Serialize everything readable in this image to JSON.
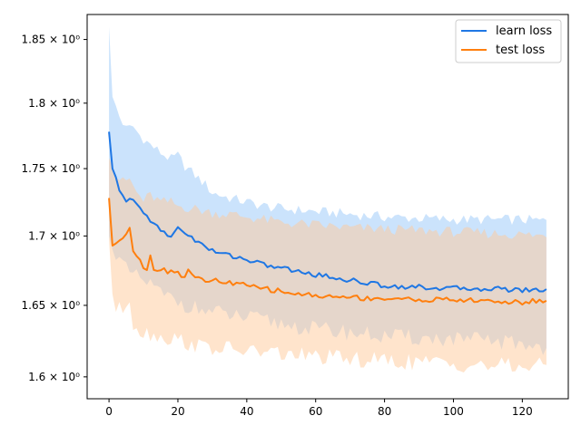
{
  "chart_data": {
    "type": "line",
    "title": "",
    "xlabel": "",
    "ylabel": "",
    "xlim": [
      -6.35,
      133.35
    ],
    "ylim": [
      1.585,
      1.87
    ],
    "yscale": "log",
    "grid": false,
    "legend_position": "top-right",
    "x_ticks": [
      0,
      20,
      40,
      60,
      80,
      100,
      120
    ],
    "x_tick_labels": [
      "0",
      "20",
      "40",
      "60",
      "80",
      "100",
      "120"
    ],
    "y_ticks": [
      1.6,
      1.65,
      1.7,
      1.75,
      1.8,
      1.85
    ],
    "y_tick_labels": [
      "1.6 × 10⁰",
      "1.65 × 10⁰",
      "1.7 × 10⁰",
      "1.75 × 10⁰",
      "1.8 × 10⁰",
      "1.85 × 10⁰"
    ],
    "x_start": 0,
    "x_end": 127,
    "series": [
      {
        "name": "learn loss",
        "color": "#1f77e4",
        "band_color": "#a8d0fa",
        "anchors": [
          [
            0,
            1.778
          ],
          [
            1,
            1.75
          ],
          [
            3,
            1.735
          ],
          [
            5,
            1.725
          ],
          [
            7,
            1.727
          ],
          [
            9,
            1.72
          ],
          [
            12,
            1.712
          ],
          [
            15,
            1.705
          ],
          [
            17,
            1.699
          ],
          [
            19,
            1.702
          ],
          [
            20,
            1.706
          ],
          [
            22,
            1.703
          ],
          [
            25,
            1.697
          ],
          [
            28,
            1.692
          ],
          [
            30,
            1.689
          ],
          [
            35,
            1.686
          ],
          [
            40,
            1.683
          ],
          [
            45,
            1.679
          ],
          [
            50,
            1.677
          ],
          [
            55,
            1.674
          ],
          [
            60,
            1.672
          ],
          [
            65,
            1.67
          ],
          [
            70,
            1.668
          ],
          [
            75,
            1.666
          ],
          [
            80,
            1.664
          ],
          [
            90,
            1.663
          ],
          [
            100,
            1.662
          ],
          [
            110,
            1.662
          ],
          [
            120,
            1.661
          ],
          [
            127,
            1.661
          ]
        ],
        "upper_anchors": [
          [
            0,
            1.86
          ],
          [
            1,
            1.805
          ],
          [
            3,
            1.79
          ],
          [
            5,
            1.78
          ],
          [
            7,
            1.782
          ],
          [
            9,
            1.775
          ],
          [
            12,
            1.768
          ],
          [
            15,
            1.762
          ],
          [
            18,
            1.757
          ],
          [
            20,
            1.76
          ],
          [
            22,
            1.752
          ],
          [
            25,
            1.745
          ],
          [
            28,
            1.738
          ],
          [
            30,
            1.732
          ],
          [
            35,
            1.728
          ],
          [
            40,
            1.725
          ],
          [
            45,
            1.722
          ],
          [
            50,
            1.72
          ],
          [
            55,
            1.719
          ],
          [
            60,
            1.718
          ],
          [
            70,
            1.716
          ],
          [
            80,
            1.714
          ],
          [
            90,
            1.713
          ],
          [
            100,
            1.712
          ],
          [
            110,
            1.712
          ],
          [
            120,
            1.712
          ],
          [
            127,
            1.711
          ]
        ],
        "lower_anchors": [
          [
            0,
            1.7
          ],
          [
            1,
            1.69
          ],
          [
            3,
            1.682
          ],
          [
            5,
            1.675
          ],
          [
            8,
            1.67
          ],
          [
            12,
            1.665
          ],
          [
            15,
            1.658
          ],
          [
            18,
            1.655
          ],
          [
            20,
            1.653
          ],
          [
            25,
            1.648
          ],
          [
            30,
            1.645
          ],
          [
            40,
            1.641
          ],
          [
            50,
            1.637
          ],
          [
            60,
            1.633
          ],
          [
            70,
            1.631
          ],
          [
            80,
            1.628
          ],
          [
            90,
            1.627
          ],
          [
            100,
            1.626
          ],
          [
            110,
            1.625
          ],
          [
            120,
            1.623
          ],
          [
            127,
            1.62
          ]
        ]
      },
      {
        "name": "test loss",
        "color": "#ff7f0e",
        "band_color": "#ffc999",
        "anchors": [
          [
            0,
            1.728
          ],
          [
            1,
            1.693
          ],
          [
            3,
            1.697
          ],
          [
            5,
            1.703
          ],
          [
            6,
            1.706
          ],
          [
            7,
            1.69
          ],
          [
            9,
            1.683
          ],
          [
            10,
            1.678
          ],
          [
            11,
            1.674
          ],
          [
            12,
            1.686
          ],
          [
            13,
            1.677
          ],
          [
            16,
            1.675
          ],
          [
            18,
            1.674
          ],
          [
            20,
            1.675
          ],
          [
            21,
            1.67
          ],
          [
            23,
            1.674
          ],
          [
            26,
            1.67
          ],
          [
            28,
            1.666
          ],
          [
            30,
            1.668
          ],
          [
            35,
            1.666
          ],
          [
            40,
            1.664
          ],
          [
            45,
            1.662
          ],
          [
            50,
            1.66
          ],
          [
            55,
            1.658
          ],
          [
            60,
            1.657
          ],
          [
            65,
            1.656
          ],
          [
            70,
            1.656
          ],
          [
            75,
            1.655
          ],
          [
            80,
            1.655
          ],
          [
            90,
            1.654
          ],
          [
            100,
            1.654
          ],
          [
            110,
            1.653
          ],
          [
            120,
            1.652
          ],
          [
            127,
            1.654
          ]
        ],
        "upper_anchors": [
          [
            0,
            1.758
          ],
          [
            2,
            1.745
          ],
          [
            4,
            1.74
          ],
          [
            6,
            1.742
          ],
          [
            8,
            1.732
          ],
          [
            10,
            1.726
          ],
          [
            12,
            1.73
          ],
          [
            15,
            1.725
          ],
          [
            18,
            1.725
          ],
          [
            20,
            1.722
          ],
          [
            25,
            1.72
          ],
          [
            30,
            1.717
          ],
          [
            35,
            1.716
          ],
          [
            40,
            1.714
          ],
          [
            45,
            1.712
          ],
          [
            50,
            1.71
          ],
          [
            55,
            1.709
          ],
          [
            60,
            1.708
          ],
          [
            70,
            1.706
          ],
          [
            80,
            1.705
          ],
          [
            90,
            1.704
          ],
          [
            100,
            1.703
          ],
          [
            110,
            1.702
          ],
          [
            120,
            1.701
          ],
          [
            127,
            1.7
          ]
        ],
        "lower_anchors": [
          [
            0,
            1.697
          ],
          [
            1,
            1.658
          ],
          [
            2,
            1.645
          ],
          [
            4,
            1.648
          ],
          [
            6,
            1.655
          ],
          [
            7,
            1.638
          ],
          [
            9,
            1.632
          ],
          [
            12,
            1.63
          ],
          [
            15,
            1.628
          ],
          [
            20,
            1.626
          ],
          [
            25,
            1.622
          ],
          [
            30,
            1.62
          ],
          [
            40,
            1.618
          ],
          [
            50,
            1.616
          ],
          [
            60,
            1.614
          ],
          [
            70,
            1.612
          ],
          [
            80,
            1.611
          ],
          [
            90,
            1.61
          ],
          [
            100,
            1.609
          ],
          [
            110,
            1.608
          ],
          [
            120,
            1.607
          ],
          [
            127,
            1.608
          ]
        ]
      }
    ]
  }
}
